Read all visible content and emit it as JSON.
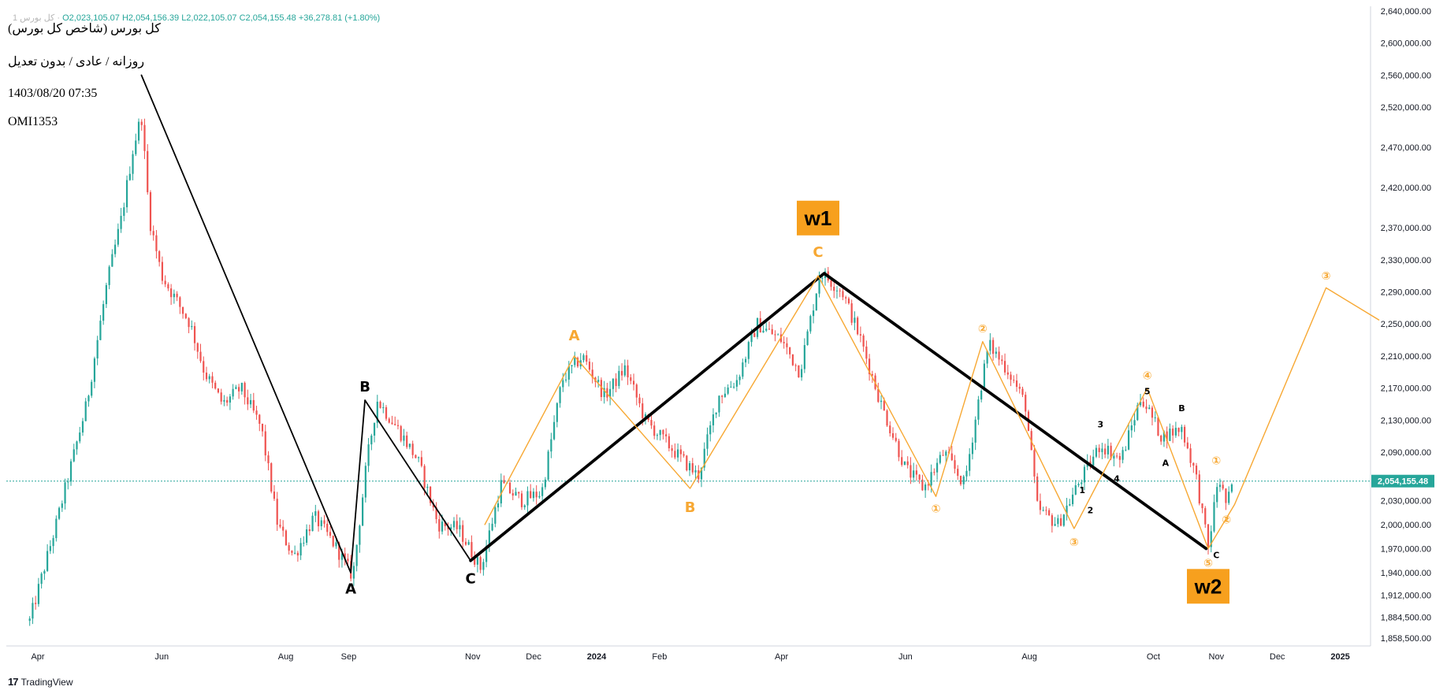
{
  "header": {
    "ohlc": {
      "symbol": "کل بورس 1 ·",
      "open": "O2,023,105.07",
      "high": "H2,054,156.39",
      "low": "L2,022,105.07",
      "close": "C2,054,155.48",
      "change": "+36,278.81 (+1.80%)"
    },
    "title": "کل بورس (شاخص کل بورس)",
    "subtitle": "روزانه / عادی / بدون تعدیل",
    "datetime": "1403/08/20 07:35",
    "code": "OMI1353"
  },
  "footer": {
    "brand": "TradingView"
  },
  "colors": {
    "up": "#26a69a",
    "down": "#ef5350",
    "wave": "#f7a833",
    "trend": "#000000",
    "label_bg": "#f7a01e"
  },
  "chart_data": {
    "type": "candlestick",
    "x_tick_labels": [
      "Apr",
      "Jun",
      "Aug",
      "Sep",
      "Nov",
      "Dec",
      "2024",
      "Feb",
      "Apr",
      "Jun",
      "Aug",
      "Oct",
      "Nov",
      "Dec",
      "2025"
    ],
    "y_tick_labels": [
      "2,640,000.00",
      "2,600,000.00",
      "2,560,000.00",
      "2,520,000.00",
      "2,470,000.00",
      "2,420,000.00",
      "2,370,000.00",
      "2,330,000.00",
      "2,290,000.00",
      "2,250,000.00",
      "2,210,000.00",
      "2,170,000.00",
      "2,130,000.00",
      "2,090,000.00",
      "2,030,000.00",
      "2,000,000.00",
      "1,970,000.00",
      "1,940,000.00",
      "1,912,000.00",
      "1,884,500.00",
      "1,858,500.00"
    ],
    "last_price_label": "2,054,155.48",
    "last_price": 2054155,
    "price_path": [
      [
        "2023-03-28",
        1880000
      ],
      [
        "2023-04-10",
        2000000
      ],
      [
        "2023-04-25",
        2150000
      ],
      [
        "2023-05-05",
        2300000
      ],
      [
        "2023-05-12",
        2380000
      ],
      [
        "2023-05-18",
        2470000
      ],
      [
        "2023-05-22",
        2510000
      ],
      [
        "2023-05-26",
        2380000
      ],
      [
        "2023-06-01",
        2310000
      ],
      [
        "2023-06-08",
        2280000
      ],
      [
        "2023-06-15",
        2250000
      ],
      [
        "2023-06-22",
        2190000
      ],
      [
        "2023-07-01",
        2150000
      ],
      [
        "2023-07-10",
        2170000
      ],
      [
        "2023-07-20",
        2120000
      ],
      [
        "2023-07-28",
        2000000
      ],
      [
        "2023-08-05",
        1960000
      ],
      [
        "2023-08-15",
        2010000
      ],
      [
        "2023-08-25",
        1975000
      ],
      [
        "2023-09-03",
        1935000
      ],
      [
        "2023-09-10",
        2080000
      ],
      [
        "2023-09-15",
        2155000
      ],
      [
        "2023-09-25",
        2120000
      ],
      [
        "2023-10-05",
        2080000
      ],
      [
        "2023-10-15",
        2000000
      ],
      [
        "2023-10-25",
        1995000
      ],
      [
        "2023-11-05",
        1945000
      ],
      [
        "2023-11-15",
        2050000
      ],
      [
        "2023-11-25",
        2030000
      ],
      [
        "2023-12-05",
        2040000
      ],
      [
        "2023-12-15",
        2180000
      ],
      [
        "2023-12-25",
        2210000
      ],
      [
        "2024-01-05",
        2160000
      ],
      [
        "2024-01-15",
        2195000
      ],
      [
        "2024-01-25",
        2130000
      ],
      [
        "2024-02-05",
        2100000
      ],
      [
        "2024-02-20",
        2060000
      ],
      [
        "2024-03-01",
        2160000
      ],
      [
        "2024-03-10",
        2180000
      ],
      [
        "2024-03-20",
        2250000
      ],
      [
        "2024-04-01",
        2230000
      ],
      [
        "2024-04-10",
        2190000
      ],
      [
        "2024-04-20",
        2315000
      ],
      [
        "2024-05-01",
        2290000
      ],
      [
        "2024-05-10",
        2230000
      ],
      [
        "2024-05-20",
        2150000
      ],
      [
        "2024-06-01",
        2070000
      ],
      [
        "2024-06-10",
        2045000
      ],
      [
        "2024-06-20",
        2090000
      ],
      [
        "2024-06-30",
        2050000
      ],
      [
        "2024-07-08",
        2170000
      ],
      [
        "2024-07-12",
        2225000
      ],
      [
        "2024-07-22",
        2190000
      ],
      [
        "2024-07-30",
        2150000
      ],
      [
        "2024-08-05",
        2020000
      ],
      [
        "2024-08-15",
        2000000
      ],
      [
        "2024-08-25",
        2050000
      ],
      [
        "2024-09-05",
        2100000
      ],
      [
        "2024-09-15",
        2080000
      ],
      [
        "2024-09-25",
        2160000
      ],
      [
        "2024-10-05",
        2110000
      ],
      [
        "2024-10-15",
        2120000
      ],
      [
        "2024-10-22",
        2060000
      ],
      [
        "2024-10-28",
        1970000
      ],
      [
        "2024-11-02",
        2060000
      ],
      [
        "2024-11-06",
        2025000
      ],
      [
        "2024-11-10",
        2054155
      ]
    ],
    "lines": [
      {
        "name": "black-thin",
        "points": [
          [
            "2023-05-22",
            2560000
          ],
          [
            "2023-09-02",
            1940000
          ],
          [
            "2023-09-09",
            2155000
          ],
          [
            "2023-10-31",
            1955000
          ]
        ]
      },
      {
        "name": "black-thick",
        "points": [
          [
            "2023-10-31",
            1955000
          ],
          [
            "2024-04-22",
            2313000
          ],
          [
            "2024-10-27",
            1970000
          ]
        ]
      },
      {
        "name": "orange",
        "points": [
          [
            "2023-11-07",
            2000000
          ],
          [
            "2023-12-21",
            2210000
          ],
          [
            "2024-02-16",
            2045000
          ],
          [
            "2024-04-19",
            2310000
          ],
          [
            "2024-06-16",
            2035000
          ],
          [
            "2024-07-09",
            2228000
          ],
          [
            "2024-08-23",
            1995000
          ],
          [
            "2024-09-28",
            2170000
          ],
          [
            "2024-10-28",
            1970000
          ],
          [
            "2024-11-10",
            2025000
          ],
          [
            "2024-12-25",
            2295000
          ],
          [
            "2025-01-20",
            2255000
          ]
        ]
      }
    ],
    "labels": [
      {
        "text": "A",
        "date": "2023-09-02",
        "price": 1920000,
        "color": "#000000",
        "size": 18
      },
      {
        "text": "B",
        "date": "2023-09-09",
        "price": 2172000,
        "color": "#000000",
        "size": 18
      },
      {
        "text": "C",
        "date": "2023-10-31",
        "price": 1933000,
        "color": "#000000",
        "size": 18
      },
      {
        "text": "A",
        "date": "2023-12-21",
        "price": 2236000,
        "color": "#f7a833",
        "size": 18
      },
      {
        "text": "B",
        "date": "2024-02-16",
        "price": 2022000,
        "color": "#f7a833",
        "size": 18
      },
      {
        "text": "C",
        "date": "2024-04-19",
        "price": 2340000,
        "color": "#f7a833",
        "size": 18
      },
      {
        "text": "w1",
        "date": "2024-04-19",
        "price": 2382000,
        "box": true,
        "size": 26
      },
      {
        "text": "w2",
        "date": "2024-10-28",
        "price": 1923000,
        "box": true,
        "size": 26
      },
      {
        "text": "①",
        "date": "2024-06-16",
        "price": 2020000,
        "color": "#f7a833",
        "size": 14
      },
      {
        "text": "②",
        "date": "2024-07-09",
        "price": 2244000,
        "color": "#f7a833",
        "size": 14
      },
      {
        "text": "③",
        "date": "2024-08-23",
        "price": 1978000,
        "color": "#f7a833",
        "size": 14
      },
      {
        "text": "④",
        "date": "2024-09-28",
        "price": 2186000,
        "color": "#f7a833",
        "size": 14
      },
      {
        "text": "⑤",
        "date": "2024-10-28",
        "price": 1952000,
        "color": "#f7a833",
        "size": 14
      },
      {
        "text": "①",
        "date": "2024-11-01",
        "price": 2080000,
        "color": "#f7a833",
        "size": 14
      },
      {
        "text": "②",
        "date": "2024-11-06",
        "price": 2006000,
        "color": "#f7a833",
        "size": 14
      },
      {
        "text": "③",
        "date": "2024-12-25",
        "price": 2310000,
        "color": "#f7a833",
        "size": 14
      },
      {
        "text": "1",
        "date": "2024-08-27",
        "price": 2043000,
        "color": "#000000",
        "size": 11
      },
      {
        "text": "2",
        "date": "2024-08-31",
        "price": 2018000,
        "color": "#000000",
        "size": 11
      },
      {
        "text": "3",
        "date": "2024-09-05",
        "price": 2125000,
        "color": "#000000",
        "size": 11
      },
      {
        "text": "4",
        "date": "2024-09-13",
        "price": 2057000,
        "color": "#000000",
        "size": 11
      },
      {
        "text": "5",
        "date": "2024-09-28",
        "price": 2166000,
        "color": "#000000",
        "size": 11
      },
      {
        "text": "A",
        "date": "2024-10-07",
        "price": 2077000,
        "color": "#000000",
        "size": 11
      },
      {
        "text": "B",
        "date": "2024-10-15",
        "price": 2145000,
        "color": "#000000",
        "size": 11
      },
      {
        "text": "C",
        "date": "2024-11-01",
        "price": 1962000,
        "color": "#000000",
        "size": 11
      }
    ]
  }
}
